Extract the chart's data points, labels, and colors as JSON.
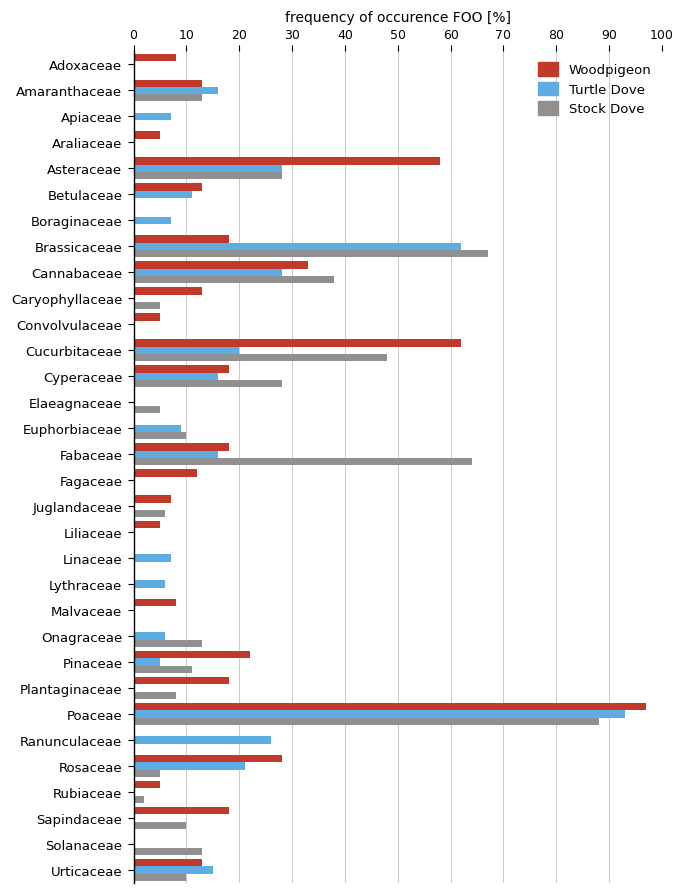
{
  "categories": [
    "Adoxaceae",
    "Amaranthaceae",
    "Apiaceae",
    "Araliaceae",
    "Asteraceae",
    "Betulaceae",
    "Boraginaceae",
    "Brassicaceae",
    "Cannabaceae",
    "Caryophyllaceae",
    "Convolvulaceae",
    "Cucurbitaceae",
    "Cyperaceae",
    "Elaeagnaceae",
    "Euphorbiaceae",
    "Fabaceae",
    "Fagaceae",
    "Juglandaceae",
    "Liliaceae",
    "Linaceae",
    "Lythraceae",
    "Malvaceae",
    "Onagraceae",
    "Pinaceae",
    "Plantaginaceae",
    "Poaceae",
    "Ranunculaceae",
    "Rosaceae",
    "Rubiaceae",
    "Sapindaceae",
    "Solanaceae",
    "Urticaceae"
  ],
  "woodpigeon": [
    8,
    13,
    0,
    5,
    58,
    13,
    0,
    18,
    33,
    13,
    5,
    62,
    18,
    0,
    0,
    18,
    12,
    7,
    5,
    0,
    0,
    8,
    0,
    22,
    18,
    97,
    0,
    28,
    5,
    18,
    0,
    13
  ],
  "turtle_dove": [
    0,
    16,
    7,
    0,
    28,
    11,
    7,
    62,
    28,
    0,
    0,
    20,
    16,
    0,
    9,
    16,
    0,
    0,
    0,
    7,
    6,
    0,
    6,
    5,
    0,
    93,
    26,
    21,
    0,
    0,
    0,
    15
  ],
  "stock_dove": [
    0,
    13,
    0,
    0,
    28,
    0,
    0,
    67,
    38,
    5,
    0,
    48,
    28,
    5,
    10,
    64,
    0,
    6,
    0,
    0,
    0,
    0,
    13,
    11,
    8,
    88,
    0,
    5,
    2,
    10,
    13,
    10
  ],
  "woodpigeon_color": "#c0392b",
  "turtle_dove_color": "#5dade2",
  "stock_dove_color": "#909090",
  "xlabel": "frequency of occurence FOO [%]",
  "xlim": [
    0,
    100
  ],
  "xticks": [
    0,
    10,
    20,
    30,
    40,
    50,
    60,
    70,
    80,
    90,
    100
  ],
  "bar_height": 0.28,
  "legend_labels": [
    "Woodpigeon",
    "Turtle Dove",
    "Stock Dove"
  ],
  "figsize": [
    6.85,
    8.95
  ],
  "dpi": 100
}
